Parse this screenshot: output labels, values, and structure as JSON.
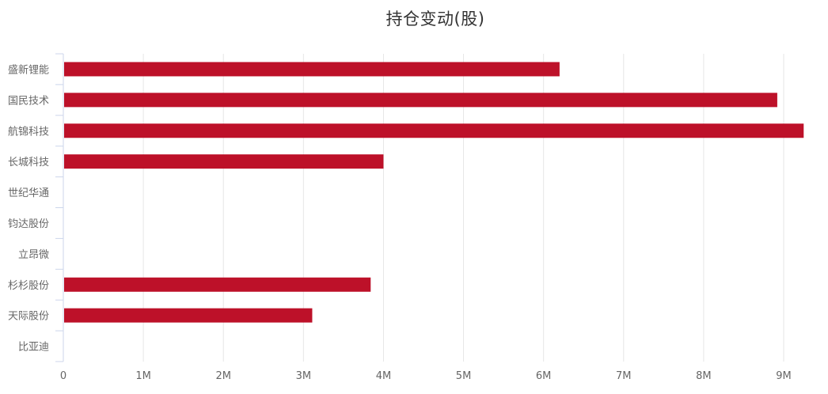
{
  "chart_data": {
    "type": "bar",
    "orientation": "horizontal",
    "title": "持仓变动(股)",
    "categories": [
      "盛新锂能",
      "国民技术",
      "航锦科技",
      "长城科技",
      "世纪华通",
      "钧达股份",
      "立昂微",
      "杉杉股份",
      "天际股份",
      "比亚迪"
    ],
    "values": [
      6200000,
      8920000,
      9250000,
      4000000,
      0,
      0,
      0,
      3840000,
      3110000,
      0
    ],
    "x_ticks": [
      "0",
      "1M",
      "2M",
      "3M",
      "4M",
      "5M",
      "6M",
      "7M",
      "8M",
      "9M"
    ],
    "xlim": [
      0,
      9000000
    ],
    "grid": true,
    "legend": "none",
    "colors": {
      "bar": "#bd1129",
      "grid": "#e6e6e6",
      "axis": "#ccd6eb",
      "label": "#666666"
    }
  }
}
